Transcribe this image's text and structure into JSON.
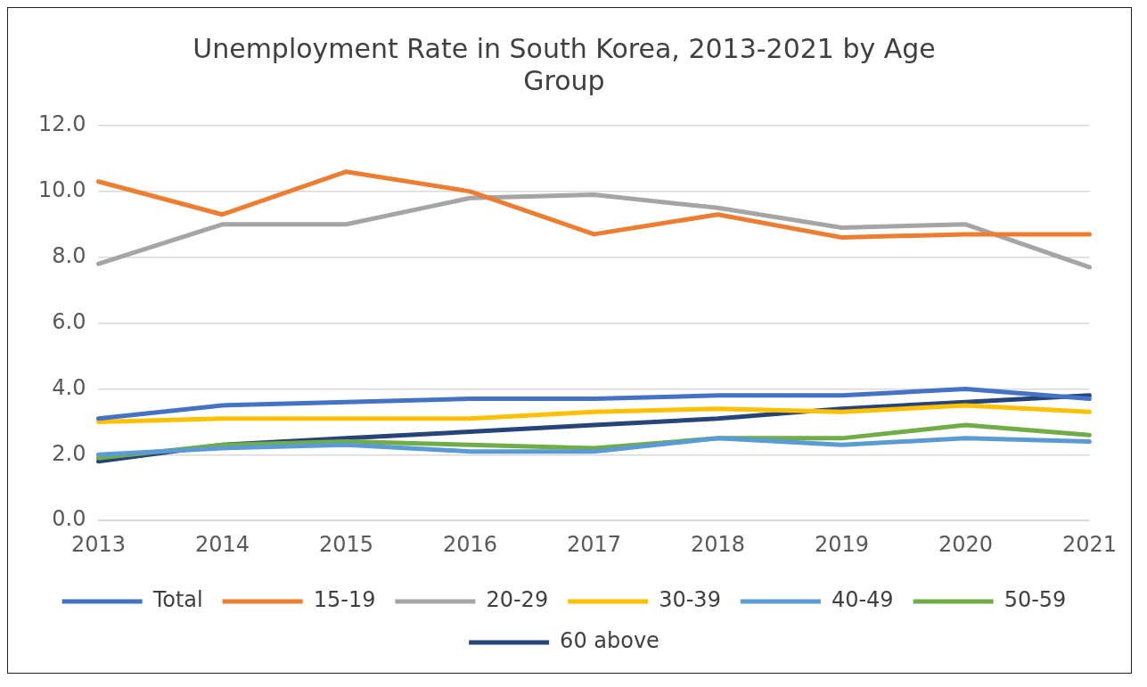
{
  "chart_data": {
    "type": "line",
    "title": "Unemployment Rate in South Korea, 2013-2021 by Age Group",
    "categories": [
      "2013",
      "2014",
      "2015",
      "2016",
      "2017",
      "2018",
      "2019",
      "2020",
      "2021"
    ],
    "series": [
      {
        "name": "Total",
        "color": "#4472c4",
        "values": [
          3.1,
          3.5,
          3.6,
          3.7,
          3.7,
          3.8,
          3.8,
          4.0,
          3.7
        ]
      },
      {
        "name": "15-19",
        "color": "#ed7d31",
        "values": [
          10.3,
          9.3,
          10.6,
          10.0,
          8.7,
          9.3,
          8.6,
          8.7,
          8.7
        ]
      },
      {
        "name": "20-29",
        "color": "#a5a5a5",
        "values": [
          7.8,
          9.0,
          9.0,
          9.8,
          9.9,
          9.5,
          8.9,
          9.0,
          7.7
        ]
      },
      {
        "name": "30-39",
        "color": "#ffc000",
        "values": [
          3.0,
          3.1,
          3.1,
          3.1,
          3.3,
          3.4,
          3.3,
          3.5,
          3.3
        ]
      },
      {
        "name": "40-49",
        "color": "#5b9bd5",
        "values": [
          2.0,
          2.2,
          2.3,
          2.1,
          2.1,
          2.5,
          2.3,
          2.5,
          2.4
        ]
      },
      {
        "name": "50-59",
        "color": "#70ad47",
        "values": [
          1.9,
          2.3,
          2.4,
          2.3,
          2.2,
          2.5,
          2.5,
          2.9,
          2.6
        ]
      },
      {
        "name": "60 above",
        "color": "#264478",
        "values": [
          1.8,
          2.3,
          2.5,
          2.7,
          2.9,
          3.1,
          3.4,
          3.6,
          3.8
        ]
      }
    ],
    "ylim": [
      0,
      12
    ],
    "yticks": [
      {
        "value": 0,
        "label": "0.0"
      },
      {
        "value": 2,
        "label": "2.0"
      },
      {
        "value": 4,
        "label": "4.0"
      },
      {
        "value": 6,
        "label": "6.0"
      },
      {
        "value": 8,
        "label": "8.0"
      },
      {
        "value": 10,
        "label": "10.0"
      },
      {
        "value": 12,
        "label": "12.0"
      }
    ],
    "grid": "y",
    "legend": "bottom",
    "marker": "none",
    "line_style": "solid"
  }
}
